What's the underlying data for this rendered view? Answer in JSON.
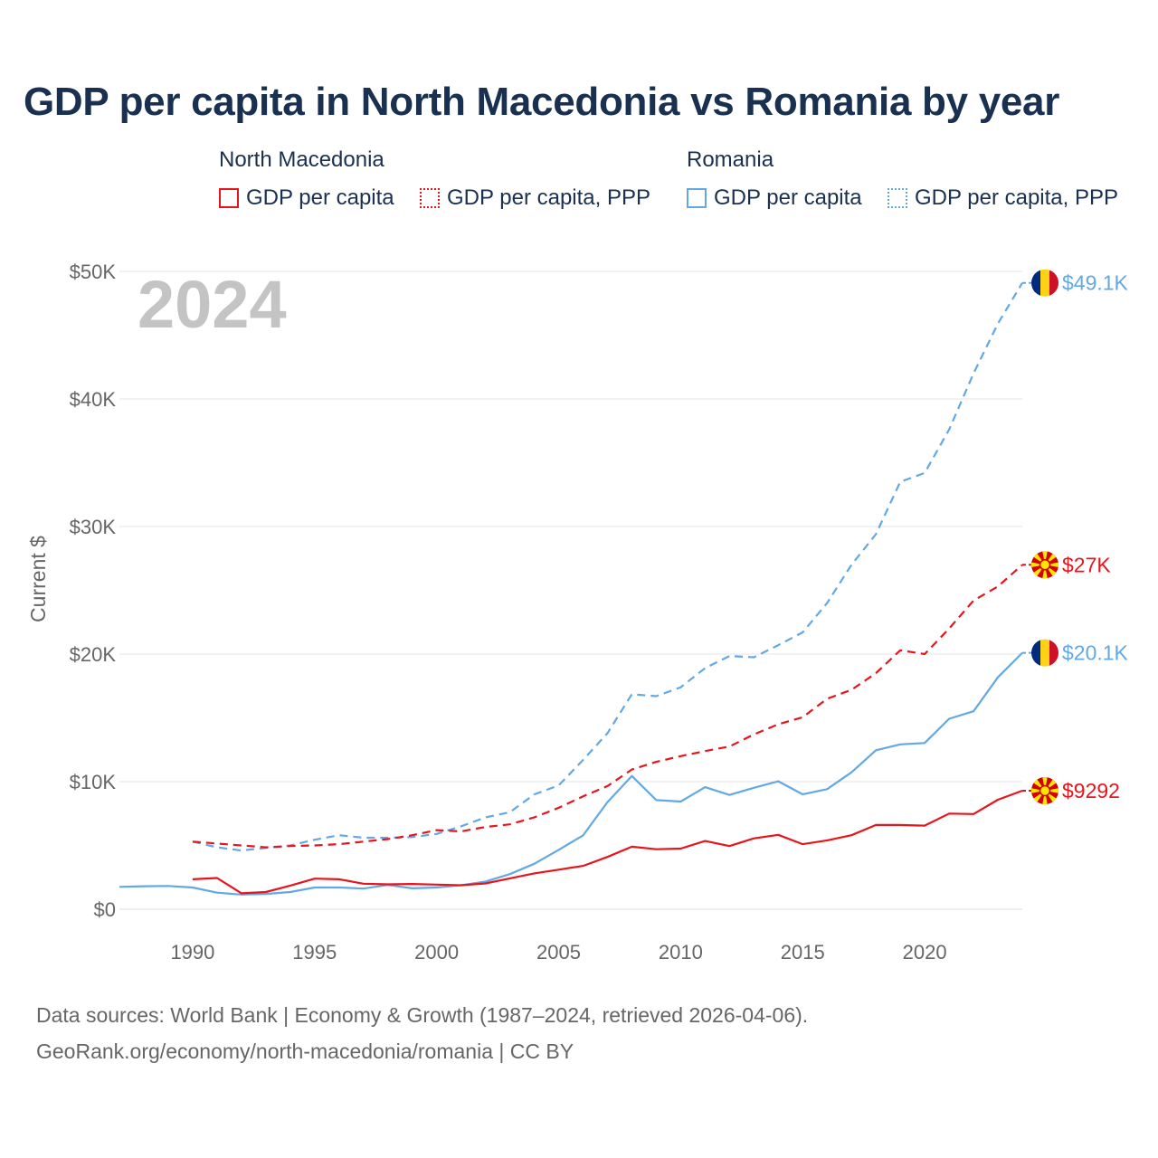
{
  "title": "GDP per capita in North Macedonia vs Romania by year",
  "colors": {
    "north_macedonia": "#e8141c",
    "romania": "#62a8e5",
    "grid": "#e6e6e6",
    "axis_text": "#666666",
    "title": "#1a3050",
    "year_watermark": "#c4c4c4"
  },
  "legend": {
    "groups": [
      {
        "country": "North Macedonia",
        "items": [
          "GDP per capita",
          "GDP per capita, PPP"
        ]
      },
      {
        "country": "Romania",
        "items": [
          "GDP per capita",
          "GDP per capita, PPP"
        ]
      }
    ]
  },
  "year_watermark": "2024",
  "end_labels": {
    "romania_ppp": "$49.1K",
    "north_macedonia_ppp": "$27K",
    "romania_gdp": "$20.1K",
    "north_macedonia_gdp": "$9292"
  },
  "footer": {
    "line1": "Data sources: World Bank | Economy & Growth (1987–2024, retrieved 2026-04-06).",
    "line2": "GeoRank.org/economy/north-macedonia/romania | CC BY"
  },
  "chart_data": {
    "type": "line",
    "title": "GDP per capita in North Macedonia vs Romania by year",
    "xlabel": "",
    "ylabel": "Current $",
    "xlim": [
      1987,
      2024
    ],
    "ylim": [
      0,
      50000
    ],
    "x_ticks": [
      1990,
      1995,
      2000,
      2005,
      2010,
      2015,
      2020
    ],
    "y_ticks": [
      0,
      10000,
      20000,
      30000,
      40000,
      50000
    ],
    "y_tick_labels": [
      "$0",
      "$10K",
      "$20K",
      "$30K",
      "$40K",
      "$50K"
    ],
    "grid": true,
    "series": [
      {
        "name": "Romania GDP per capita",
        "country": "Romania",
        "color": "#62a8e5",
        "dash": "solid",
        "x": [
          1987,
          1988,
          1989,
          1990,
          1991,
          1992,
          1993,
          1994,
          1995,
          1996,
          1997,
          1998,
          1999,
          2000,
          2001,
          2002,
          2003,
          2004,
          2005,
          2006,
          2007,
          2008,
          2009,
          2010,
          2011,
          2012,
          2013,
          2014,
          2015,
          2016,
          2017,
          2018,
          2019,
          2020,
          2021,
          2022,
          2023,
          2024
        ],
        "values": [
          1750,
          1800,
          1820,
          1700,
          1300,
          1150,
          1200,
          1350,
          1700,
          1700,
          1620,
          1900,
          1640,
          1700,
          1880,
          2170,
          2750,
          3560,
          4650,
          5790,
          8400,
          10450,
          8550,
          8440,
          9570,
          8960,
          9520,
          10030,
          9010,
          9410,
          10730,
          12460,
          12920,
          13030,
          14930,
          15520,
          18180,
          20100
        ]
      },
      {
        "name": "Romania GDP per capita, PPP",
        "country": "Romania",
        "color": "#62a8e5",
        "dash": "dashed",
        "x": [
          1990,
          1991,
          1992,
          1993,
          1994,
          1995,
          1996,
          1997,
          1998,
          1999,
          2000,
          2001,
          2002,
          2003,
          2004,
          2005,
          2006,
          2007,
          2008,
          2009,
          2010,
          2011,
          2012,
          2013,
          2014,
          2015,
          2016,
          2017,
          2018,
          2019,
          2020,
          2021,
          2022,
          2023,
          2024
        ],
        "values": [
          5300,
          4850,
          4600,
          4800,
          5000,
          5450,
          5800,
          5600,
          5600,
          5650,
          5900,
          6500,
          7200,
          7600,
          9000,
          9700,
          11700,
          13800,
          16850,
          16700,
          17400,
          18900,
          19850,
          19750,
          20700,
          21700,
          24000,
          27000,
          29400,
          33500,
          34200,
          37600,
          42000,
          45900,
          49100
        ]
      },
      {
        "name": "North Macedonia GDP per capita",
        "country": "North Macedonia",
        "color": "#e8141c",
        "dash": "solid",
        "x": [
          1990,
          1991,
          1992,
          1993,
          1994,
          1995,
          1996,
          1997,
          1998,
          1999,
          2000,
          2001,
          2002,
          2003,
          2004,
          2005,
          2006,
          2007,
          2008,
          2009,
          2010,
          2011,
          2012,
          2013,
          2014,
          2015,
          2016,
          2017,
          2018,
          2019,
          2020,
          2021,
          2022,
          2023,
          2024
        ],
        "values": [
          2350,
          2450,
          1250,
          1350,
          1850,
          2400,
          2350,
          2000,
          1950,
          1980,
          1930,
          1880,
          2020,
          2420,
          2810,
          3100,
          3400,
          4100,
          4900,
          4700,
          4750,
          5350,
          4950,
          5550,
          5830,
          5100,
          5400,
          5800,
          6600,
          6600,
          6550,
          7500,
          7460,
          8580,
          9292
        ]
      },
      {
        "name": "North Macedonia GDP per capita, PPP",
        "country": "North Macedonia",
        "color": "#e8141c",
        "dash": "dashed",
        "x": [
          1990,
          1991,
          1992,
          1993,
          1994,
          1995,
          1996,
          1997,
          1998,
          1999,
          2000,
          2001,
          2002,
          2003,
          2004,
          2005,
          2006,
          2007,
          2008,
          2009,
          2010,
          2011,
          2012,
          2013,
          2014,
          2015,
          2016,
          2017,
          2018,
          2019,
          2020,
          2021,
          2022,
          2023,
          2024
        ],
        "values": [
          5300,
          5150,
          5000,
          4850,
          4950,
          5000,
          5100,
          5300,
          5500,
          5800,
          6200,
          6100,
          6450,
          6650,
          7200,
          7950,
          8850,
          9650,
          10950,
          11550,
          12000,
          12400,
          12750,
          13700,
          14500,
          15050,
          16500,
          17200,
          18500,
          20300,
          20000,
          22000,
          24200,
          25300,
          27000
        ]
      }
    ]
  }
}
